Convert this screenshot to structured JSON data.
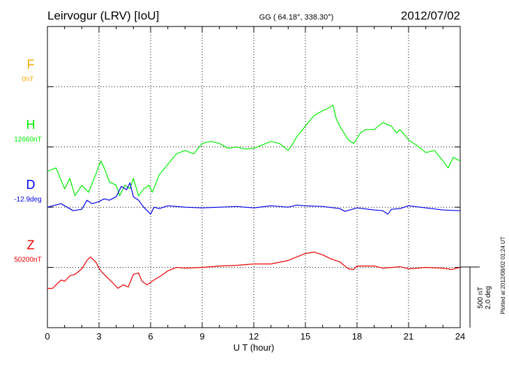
{
  "header": {
    "station": "Leirvogur (LRV)  [IoU]",
    "coords": "GG ( 64.18°, 338.30°)",
    "date": "2012/07/02"
  },
  "side_note": "Plotted at 2012/08/02 01:24  UT",
  "scale_bar": {
    "nT": "500 nT",
    "deg": "2.0 deg"
  },
  "chart_data": {
    "type": "line",
    "xlabel": "U T (hour)",
    "xlim": [
      0,
      24
    ],
    "xticks": [
      "0",
      "3",
      "6",
      "9",
      "12",
      "15",
      "18",
      "21",
      "24"
    ],
    "grid": true,
    "series": [
      {
        "name": "F",
        "baseline": "0nT",
        "color": "#ffaa00",
        "level": 1,
        "x": [],
        "y": []
      },
      {
        "name": "H",
        "baseline": "12660nT",
        "color": "#00ee00",
        "level": 2,
        "x": [
          0,
          0.5,
          1,
          1.3,
          1.6,
          2,
          2.4,
          2.8,
          3.1,
          3.3,
          3.6,
          4,
          4.2,
          4.5,
          4.8,
          5,
          5.3,
          5.6,
          5.9,
          6.1,
          6.5,
          7,
          7.5,
          8,
          8.5,
          9,
          9.5,
          10,
          10.5,
          11,
          11.5,
          12,
          12.5,
          13,
          13.5,
          14,
          14.2,
          14.5,
          15,
          15.5,
          16,
          16.3,
          16.6,
          16.8,
          17,
          17.5,
          17.8,
          18.2,
          18.5,
          19,
          19.5,
          19.8,
          20,
          20.3,
          20.5,
          21,
          21.5,
          22,
          22.5,
          23,
          23.3,
          23.6,
          24
        ],
        "y": [
          -35,
          -30,
          -60,
          -45,
          -70,
          -55,
          -65,
          -40,
          -20,
          -30,
          -50,
          -55,
          -70,
          -55,
          -60,
          -45,
          -70,
          -60,
          -55,
          -65,
          -40,
          -25,
          -10,
          -5,
          -10,
          5,
          8,
          5,
          -2,
          0,
          -3,
          -2,
          3,
          8,
          5,
          -5,
          2,
          15,
          30,
          45,
          52,
          55,
          60,
          40,
          30,
          10,
          5,
          20,
          25,
          25,
          35,
          32,
          30,
          20,
          25,
          10,
          2,
          -8,
          -5,
          -20,
          -30,
          -15,
          -20
        ]
      },
      {
        "name": "D",
        "baseline": "-12.9deg",
        "color": "#0000ee",
        "level": 3,
        "x": [
          0,
          0.3,
          0.8,
          1,
          1.5,
          2,
          2.3,
          2.6,
          3,
          3.3,
          3.6,
          4,
          4.3,
          4.6,
          4.8,
          5,
          5.3,
          5.6,
          6,
          6.2,
          6.5,
          7,
          8,
          9,
          10,
          11,
          12,
          13,
          14,
          14.5,
          15,
          16,
          17,
          17.3,
          18,
          19,
          19.5,
          19.8,
          20,
          20.5,
          21,
          22,
          23,
          24
        ],
        "y": [
          0,
          2,
          5,
          2,
          -5,
          -3,
          10,
          5,
          8,
          12,
          10,
          15,
          30,
          25,
          35,
          15,
          10,
          0,
          -10,
          0,
          -2,
          2,
          0,
          -1,
          0,
          1,
          -1,
          2,
          0,
          3,
          2,
          1,
          -2,
          -6,
          -1,
          -4,
          -5,
          -10,
          -3,
          -2,
          2,
          -1,
          -4,
          -5
        ]
      },
      {
        "name": "Z",
        "baseline": "50200nT",
        "color": "#ee0000",
        "level": 4,
        "x": [
          0,
          0.3,
          0.8,
          1,
          1.3,
          1.6,
          2,
          2.3,
          2.5,
          2.8,
          3.1,
          3.5,
          3.8,
          4.1,
          4.4,
          4.7,
          5,
          5.3,
          5.5,
          5.8,
          6.2,
          6.6,
          7,
          7.5,
          8,
          9,
          10,
          11,
          12,
          13,
          14,
          14.5,
          15,
          15.5,
          16,
          16.5,
          17,
          17.5,
          17.8,
          18,
          19,
          19.5,
          20,
          20.5,
          21,
          22,
          23,
          23.5,
          24
        ],
        "y": [
          -30,
          -30,
          -18,
          -20,
          -12,
          -10,
          -2,
          10,
          15,
          8,
          -5,
          -15,
          -22,
          -30,
          -25,
          -28,
          -10,
          -8,
          -20,
          -25,
          -18,
          -12,
          -5,
          0,
          -1,
          0,
          2,
          3,
          5,
          5,
          10,
          15,
          20,
          22,
          18,
          12,
          8,
          -2,
          -3,
          2,
          2,
          -1,
          0,
          1,
          -2,
          0,
          -1,
          -3,
          0
        ]
      }
    ]
  }
}
